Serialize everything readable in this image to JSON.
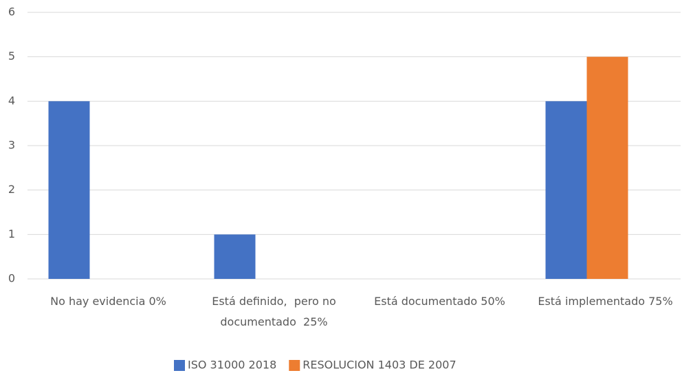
{
  "chart_data": {
    "type": "bar",
    "categories": [
      "No hay evidencia 0%",
      "Está definido,  pero no documentado  25%",
      "Está documentado 50%",
      "Está implementado 75%"
    ],
    "series": [
      {
        "name": "ISO 31000 2018",
        "color": "#4472c4",
        "values": [
          4,
          1,
          0,
          4
        ]
      },
      {
        "name": "RESOLUCION 1403 DE 2007",
        "color": "#ed7d31",
        "values": [
          0,
          0,
          0,
          5
        ]
      }
    ],
    "ylim": [
      0,
      6
    ],
    "yticks": [
      0,
      1,
      2,
      3,
      4,
      5,
      6
    ],
    "grid": true,
    "legend": "bottom"
  }
}
